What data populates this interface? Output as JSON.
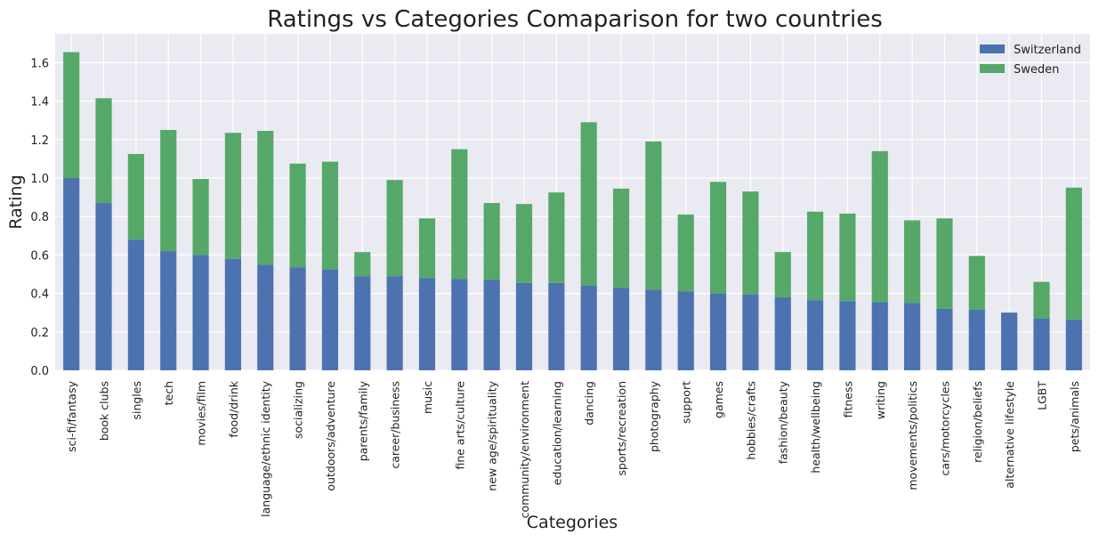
{
  "chart_data": {
    "type": "bar",
    "stacked": true,
    "title": "Ratings vs Categories Comaparison for two countries",
    "xlabel": "Categories",
    "ylabel": "Rating",
    "ylim": [
      0,
      1.75
    ],
    "yticks": [
      0.0,
      0.2,
      0.4,
      0.6,
      0.8,
      1.0,
      1.2,
      1.4,
      1.6
    ],
    "grid": true,
    "legend_position": "top-right",
    "categories": [
      "sci-fi/fantasy",
      "book clubs",
      "singles",
      "tech",
      "movies/film",
      "food/drink",
      "language/ethnic identity",
      "socializing",
      "outdoors/adventure",
      "parents/family",
      "career/business",
      "music",
      "fine arts/culture",
      "new age/spirituality",
      "community/environment",
      "education/learning",
      "dancing",
      "sports/recreation",
      "photography",
      "support",
      "games",
      "hobbies/crafts",
      "fashion/beauty",
      "health/wellbeing",
      "fitness",
      "writing",
      "movements/politics",
      "cars/motorcycles",
      "religion/beliefs",
      "alternative lifestyle",
      "LGBT",
      "pets/animals"
    ],
    "series": [
      {
        "name": "Switzerland",
        "color": "#4c72b0",
        "values": [
          1.0,
          0.87,
          0.68,
          0.62,
          0.6,
          0.58,
          0.55,
          0.535,
          0.525,
          0.49,
          0.49,
          0.48,
          0.475,
          0.47,
          0.455,
          0.455,
          0.44,
          0.43,
          0.42,
          0.41,
          0.4,
          0.395,
          0.38,
          0.365,
          0.36,
          0.355,
          0.35,
          0.32,
          0.315,
          0.3,
          0.27,
          0.265
        ]
      },
      {
        "name": "Sweden",
        "color": "#55a868",
        "values": [
          0.655,
          0.545,
          0.445,
          0.63,
          0.395,
          0.655,
          0.695,
          0.54,
          0.56,
          0.125,
          0.5,
          0.31,
          0.675,
          0.4,
          0.41,
          0.47,
          0.85,
          0.515,
          0.77,
          0.4,
          0.58,
          0.535,
          0.235,
          0.46,
          0.455,
          0.785,
          0.43,
          0.47,
          0.28,
          0.0,
          0.19,
          0.685
        ]
      }
    ]
  }
}
